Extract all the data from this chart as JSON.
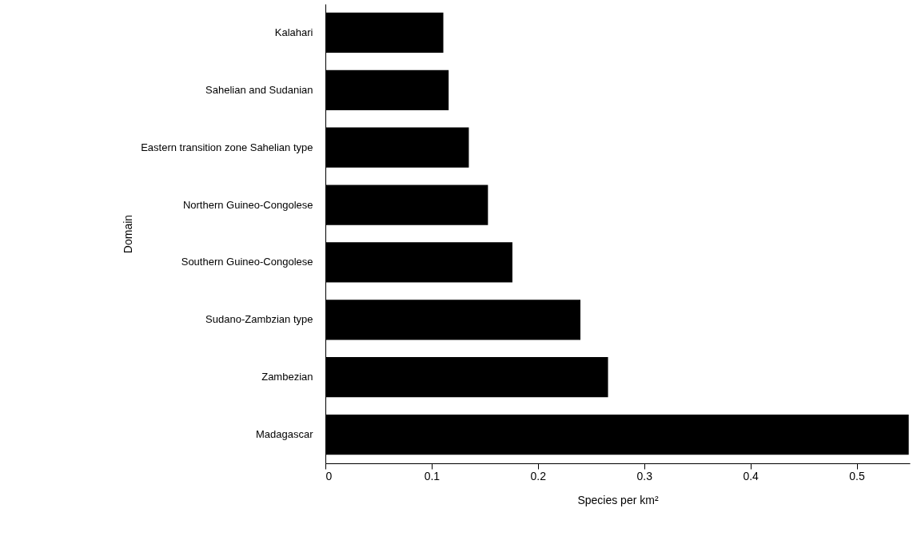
{
  "chart_data": {
    "type": "bar",
    "orientation": "horizontal",
    "xlabel": "Species per km²",
    "ylabel": "Domain",
    "categories": [
      "Kalahari",
      "Sahelian and Sudanian",
      "Eastern transition zone Sahelian type",
      "Northern Guineo-Congolese",
      "Southern Guineo-Congolese",
      "Sudano-Zambzian type",
      "Zambezian",
      "Madagascar"
    ],
    "values": [
      0.111,
      0.116,
      0.135,
      0.153,
      0.176,
      0.24,
      0.266,
      0.549
    ],
    "color": "#000000",
    "xlim": [
      0,
      0.55
    ],
    "xticks": [
      0,
      0.1,
      0.2,
      0.3,
      0.4,
      0.5
    ],
    "grid": false
  }
}
